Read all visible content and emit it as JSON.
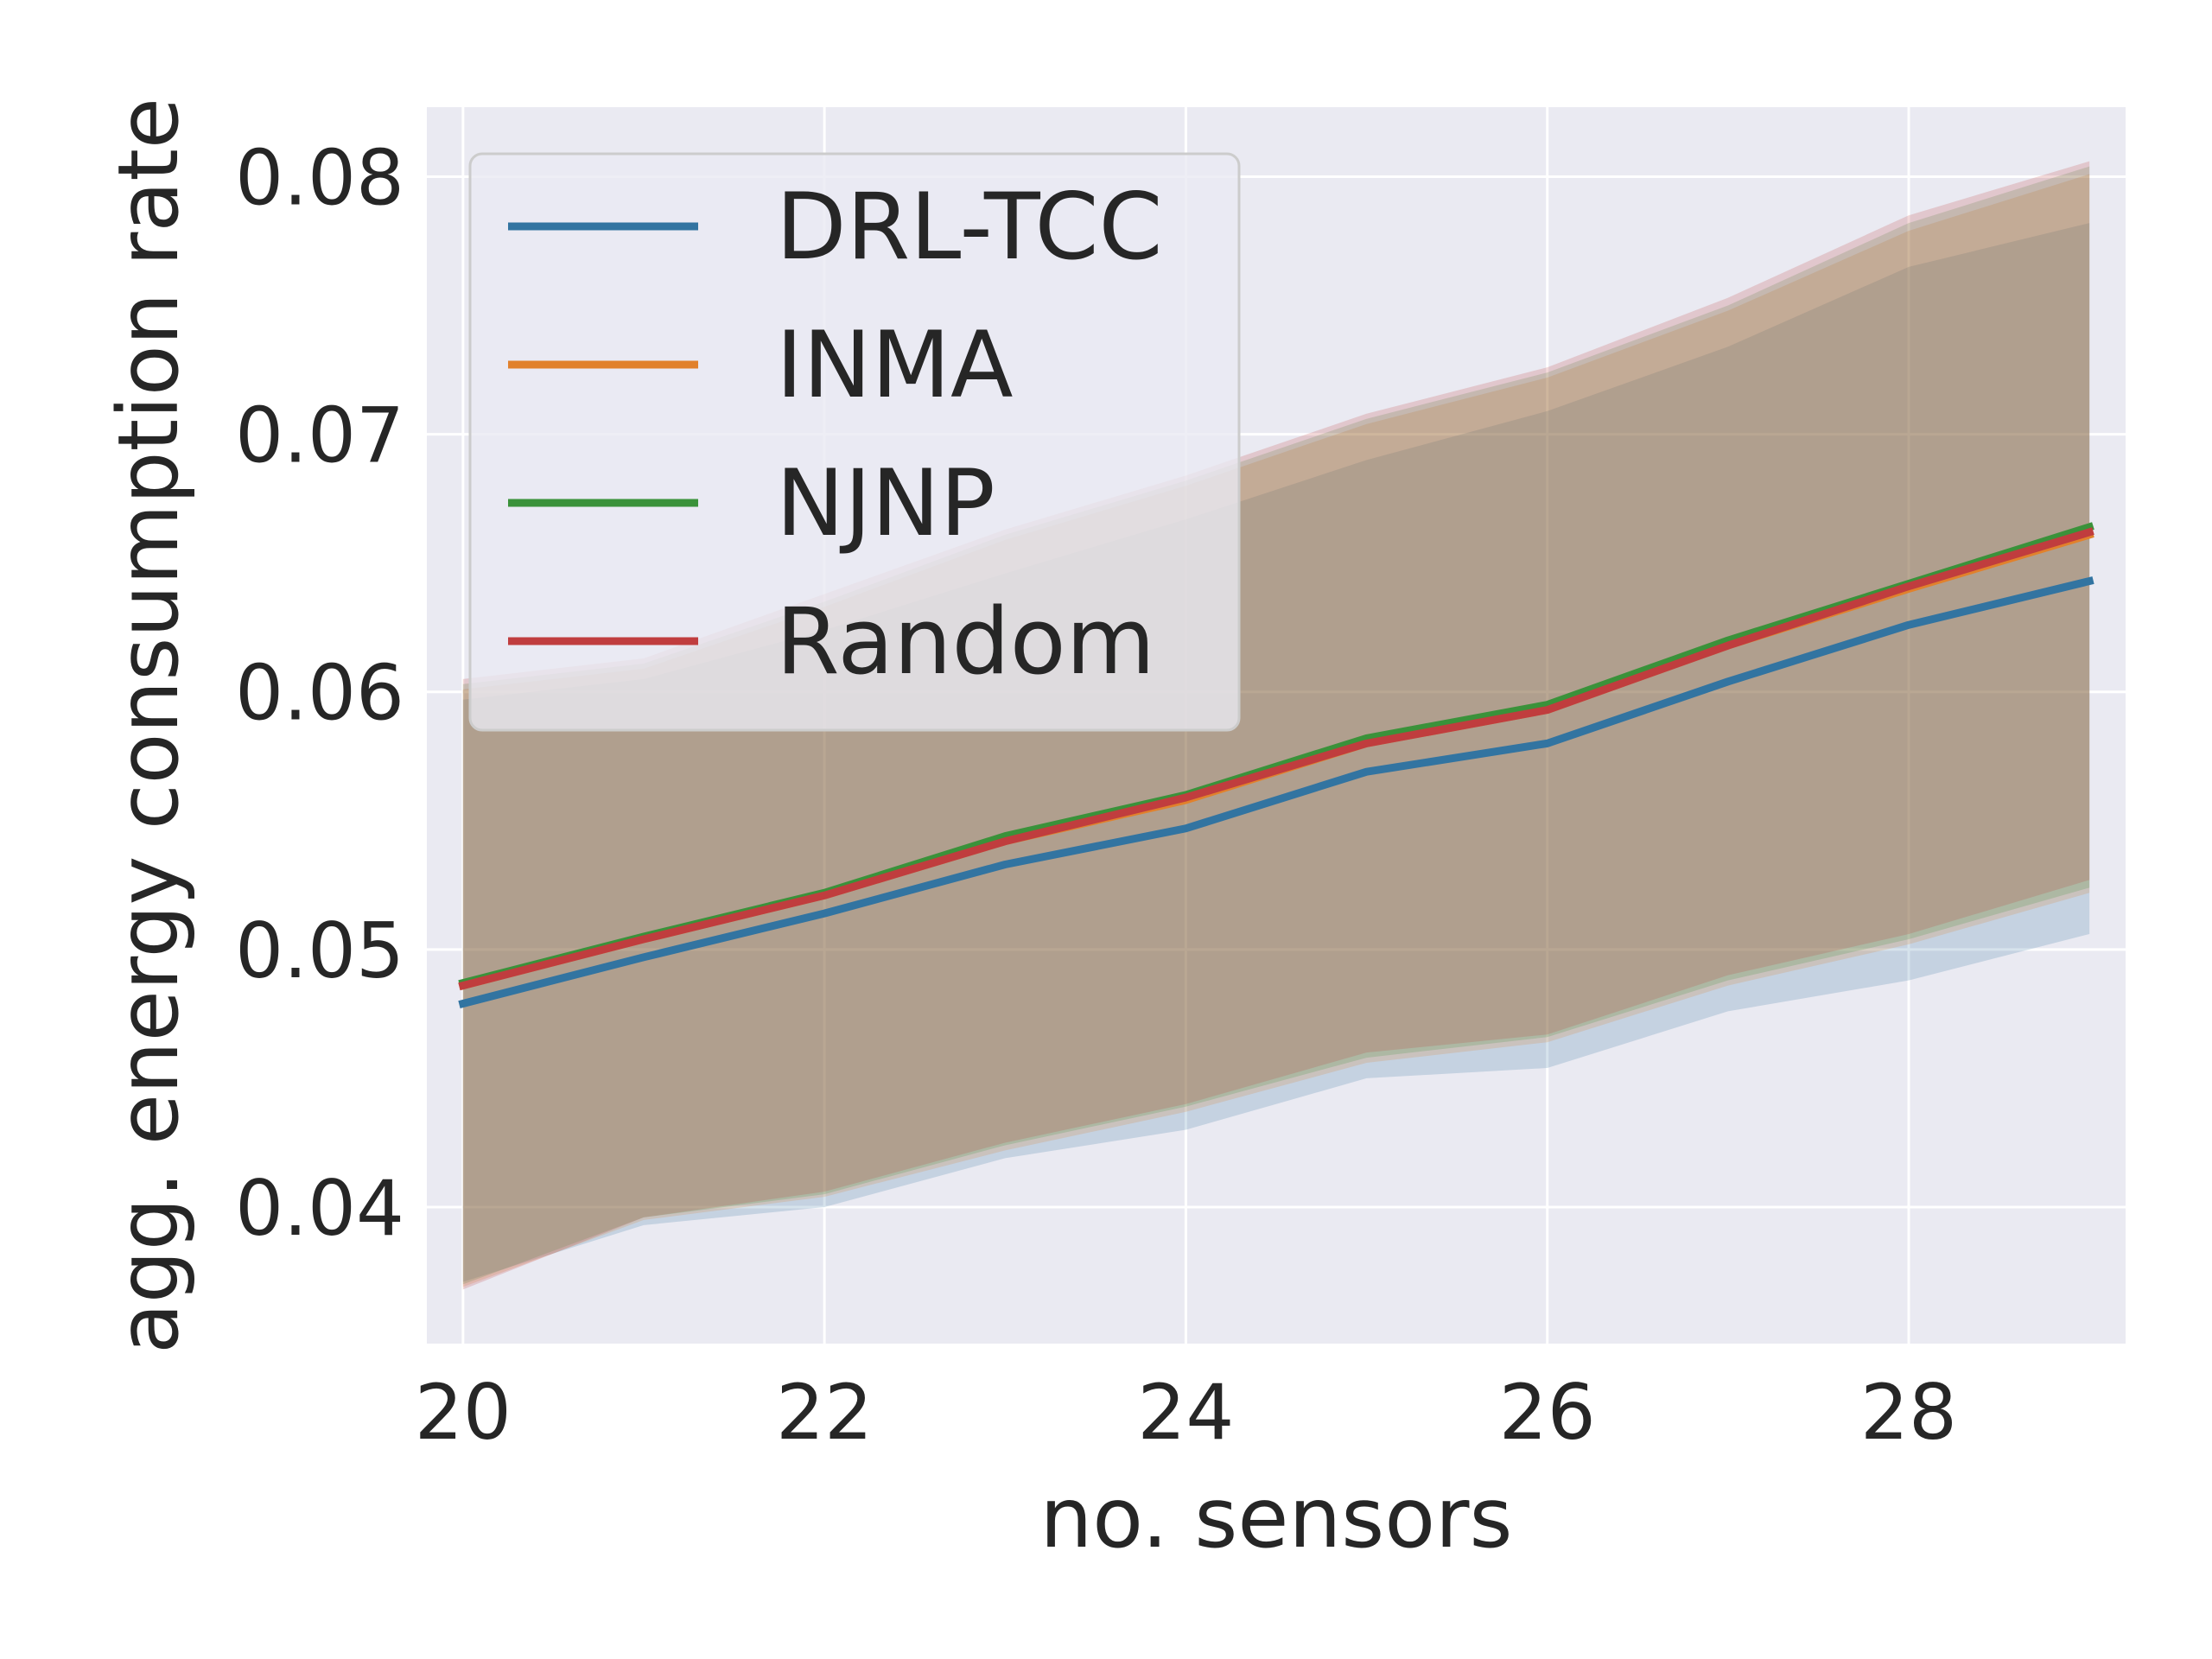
{
  "chart_data": {
    "type": "line",
    "title": "",
    "xlabel": "no. sensors",
    "ylabel": "agg. energy consumption rate",
    "xlim": [
      19.8,
      29.2
    ],
    "ylim": [
      0.0347,
      0.0827
    ],
    "xticks": [
      20,
      22,
      24,
      26,
      28
    ],
    "xtick_labels": [
      "20",
      "22",
      "24",
      "26",
      "28"
    ],
    "yticks": [
      0.04,
      0.05,
      0.06,
      0.07,
      0.08
    ],
    "ytick_labels": [
      "0.04",
      "0.05",
      "0.06",
      "0.07",
      "0.08"
    ],
    "grid": true,
    "legend_position": "top-left",
    "x": [
      20,
      21,
      22,
      23,
      24,
      25,
      26,
      27,
      28,
      29
    ],
    "series": [
      {
        "name": "DRL-TCC",
        "color": "#3274a1",
        "values": [
          0.0479,
          0.0497,
          0.0514,
          0.0533,
          0.0547,
          0.0569,
          0.058,
          0.0604,
          0.0626,
          0.0643
        ],
        "lower": [
          0.0371,
          0.0393,
          0.04,
          0.0419,
          0.043,
          0.045,
          0.0454,
          0.0476,
          0.0488,
          0.0506
        ],
        "upper": [
          0.0597,
          0.0605,
          0.0624,
          0.0646,
          0.0667,
          0.069,
          0.0709,
          0.0734,
          0.0765,
          0.0782
        ]
      },
      {
        "name": "INMA",
        "color": "#e1812c",
        "values": [
          0.0486,
          0.0504,
          0.0521,
          0.0542,
          0.0558,
          0.058,
          0.0593,
          0.0618,
          0.064,
          0.0661
        ],
        "lower": [
          0.0369,
          0.0395,
          0.0404,
          0.0422,
          0.0437,
          0.0456,
          0.0464,
          0.0486,
          0.0502,
          0.0522
        ],
        "upper": [
          0.0601,
          0.0609,
          0.0633,
          0.0659,
          0.068,
          0.0704,
          0.0722,
          0.0748,
          0.0779,
          0.0801
        ]
      },
      {
        "name": "NJNP",
        "color": "#3a923a",
        "values": [
          0.0487,
          0.0505,
          0.0522,
          0.0544,
          0.056,
          0.0582,
          0.0595,
          0.062,
          0.0642,
          0.0664
        ],
        "lower": [
          0.037,
          0.0396,
          0.0405,
          0.0424,
          0.0439,
          0.0458,
          0.0466,
          0.0488,
          0.0504,
          0.0524
        ],
        "upper": [
          0.0603,
          0.0611,
          0.0635,
          0.0661,
          0.0682,
          0.0706,
          0.0724,
          0.075,
          0.0782,
          0.0804
        ]
      },
      {
        "name": "Random",
        "color": "#c03d3e",
        "values": [
          0.0486,
          0.0504,
          0.0521,
          0.0542,
          0.0559,
          0.058,
          0.0593,
          0.0618,
          0.0641,
          0.0662
        ],
        "lower": [
          0.0368,
          0.0396,
          0.0406,
          0.0425,
          0.044,
          0.046,
          0.0467,
          0.049,
          0.0506,
          0.0527
        ],
        "upper": [
          0.0605,
          0.0613,
          0.0638,
          0.0663,
          0.0684,
          0.0708,
          0.0726,
          0.0753,
          0.0785,
          0.0806
        ]
      }
    ]
  }
}
